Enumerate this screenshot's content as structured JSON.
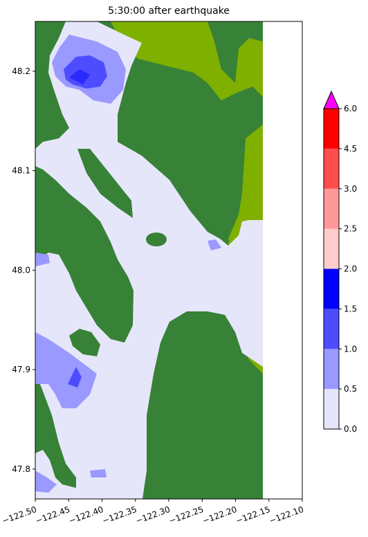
{
  "chart_data": {
    "type": "heatmap",
    "title": "5:30:00 after earthquake",
    "xlabel": "",
    "ylabel": "",
    "xlim": [
      -122.5,
      -122.1
    ],
    "ylim": [
      47.77,
      48.25
    ],
    "x_ticks": [
      -122.5,
      -122.45,
      -122.4,
      -122.35,
      -122.3,
      -122.25,
      -122.2,
      -122.15,
      -122.1
    ],
    "x_tick_labels": [
      "−122.50",
      "−122.45",
      "−122.40",
      "−122.35",
      "−122.30",
      "−122.25",
      "−122.20",
      "−122.15",
      "−122.10"
    ],
    "y_ticks": [
      47.8,
      47.9,
      48.0,
      48.1,
      48.2
    ],
    "y_tick_labels": [
      "47.8",
      "47.9",
      "48.0",
      "48.1",
      "48.2"
    ],
    "data_extent_x": [
      -122.5,
      -122.158
    ],
    "colorbar": {
      "levels": [
        0.0,
        0.5,
        1.0,
        1.5,
        2.0,
        2.5,
        3.0,
        4.5,
        6.0
      ],
      "tick_labels": [
        "0.0",
        "0.5",
        "1.0",
        "1.5",
        "2.0",
        "2.5",
        "3.0",
        "4.5",
        "6.0"
      ],
      "colors": [
        "#e6e6fa",
        "#9999ff",
        "#4d4dff",
        "#0000ff",
        "#ffcccc",
        "#ff9999",
        "#ff4d4d",
        "#ff0000"
      ],
      "extend_max_color": "#ff00ff"
    },
    "colors": {
      "land": "#378237",
      "shore": "#7fb000",
      "water_low": "#e6e6fa",
      "water_mid": "#9999ff",
      "water_high": "#4d4dff",
      "water_peak": "#0000ff",
      "no_data": "#ffffff"
    },
    "grid": false
  }
}
